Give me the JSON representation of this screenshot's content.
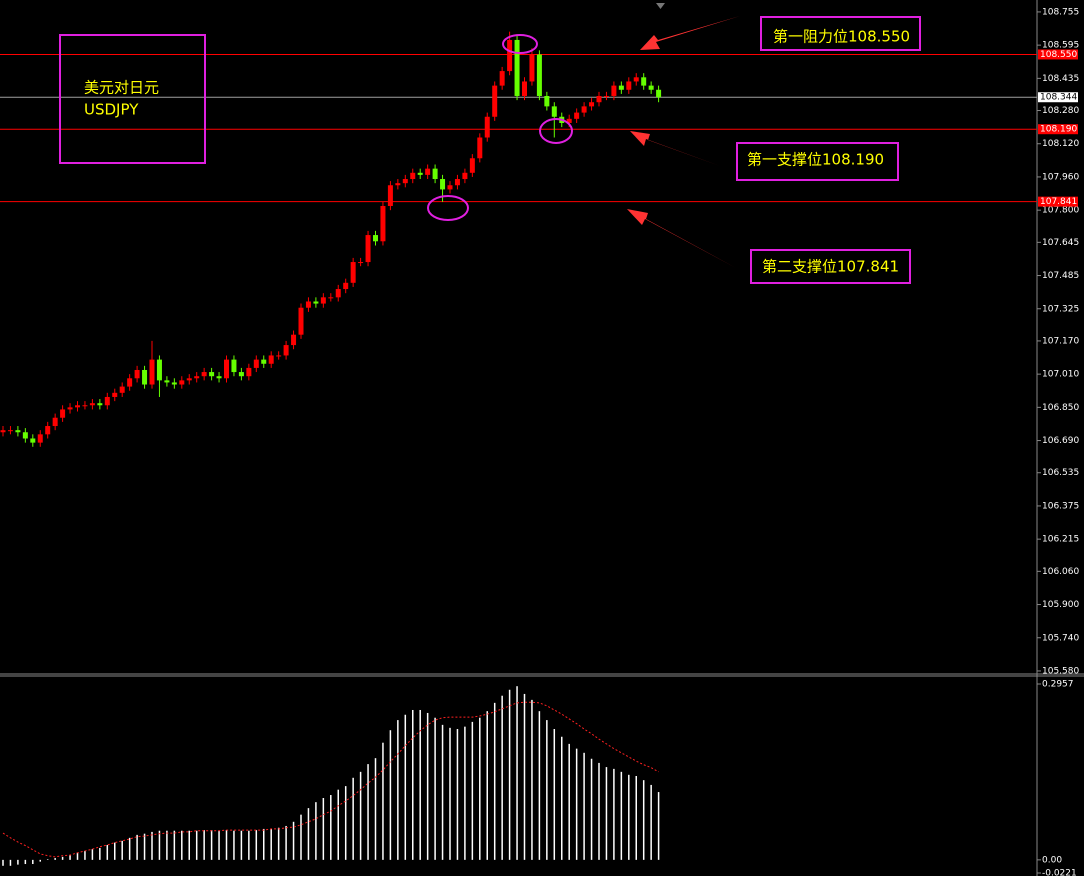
{
  "chart_data": [
    {
      "type": "candlestick",
      "up_color": "#ff0000",
      "down_color": "#66ff00",
      "ylim": [
        105.575,
        108.798
      ],
      "yticks": [
        108.755,
        108.595,
        108.435,
        {
          "value": 108.28,
          "label": "108.280"
        },
        {
          "value": 108.12,
          "label": "108.120"
        },
        {
          "value": 107.96,
          "label": "107.960"
        },
        {
          "value": 107.8,
          "label": "107.800"
        },
        107.645,
        107.485,
        107.325,
        {
          "value": 107.17,
          "label": "107.170"
        },
        {
          "value": 107.01,
          "label": "107.010"
        },
        {
          "value": 106.85,
          "label": "106.850"
        },
        {
          "value": 106.69,
          "label": "106.690"
        },
        106.535,
        106.375,
        106.215,
        {
          "value": 106.06,
          "label": "106.060"
        },
        {
          "value": 105.9,
          "label": "105.900"
        },
        {
          "value": 105.74,
          "label": "105.740"
        },
        {
          "value": 105.58,
          "label": "105.580"
        }
      ],
      "open": [
        106.73,
        106.74,
        106.74,
        106.73,
        106.7,
        106.68,
        106.72,
        106.76,
        106.8,
        106.84,
        106.85,
        106.86,
        106.86,
        106.87,
        106.86,
        106.9,
        106.92,
        106.95,
        106.99,
        107.03,
        106.96,
        107.08,
        106.98,
        106.97,
        106.96,
        106.98,
        106.99,
        107.0,
        107.02,
        107.0,
        106.99,
        107.08,
        107.02,
        107.0,
        107.04,
        107.08,
        107.06,
        107.1,
        107.1,
        107.15,
        107.2,
        107.33,
        107.36,
        107.35,
        107.38,
        107.38,
        107.42,
        107.45,
        107.55,
        107.55,
        107.68,
        107.65,
        107.82,
        107.92,
        107.93,
        107.95,
        107.98,
        107.97,
        108.0,
        107.95,
        107.9,
        107.92,
        107.95,
        107.98,
        108.05,
        108.15,
        108.25,
        108.4,
        108.47,
        108.62,
        108.35,
        108.42,
        108.55,
        108.35,
        108.3,
        108.25,
        108.22,
        108.24,
        108.27,
        108.3,
        108.32,
        108.35,
        108.35,
        108.4,
        108.38,
        108.42,
        108.44,
        108.4,
        108.38
      ],
      "high": [
        106.76,
        106.76,
        106.76,
        106.75,
        106.72,
        106.74,
        106.78,
        106.82,
        106.86,
        106.87,
        106.88,
        106.88,
        106.89,
        106.89,
        106.92,
        106.94,
        106.97,
        107.01,
        107.05,
        107.05,
        107.17,
        107.1,
        107.0,
        106.99,
        107.0,
        107.01,
        107.02,
        107.04,
        107.04,
        107.02,
        107.1,
        107.1,
        107.04,
        107.06,
        107.1,
        107.1,
        107.12,
        107.12,
        107.17,
        107.22,
        107.35,
        107.38,
        107.38,
        107.4,
        107.4,
        107.44,
        107.47,
        107.57,
        107.57,
        107.7,
        107.7,
        107.84,
        107.94,
        107.95,
        107.97,
        108.0,
        108.0,
        108.02,
        108.02,
        107.97,
        107.94,
        107.97,
        108.0,
        108.07,
        108.17,
        108.27,
        108.42,
        108.49,
        108.66,
        108.64,
        108.44,
        108.58,
        108.57,
        108.37,
        108.32,
        108.27,
        108.26,
        108.29,
        108.32,
        108.34,
        108.37,
        108.37,
        108.42,
        108.42,
        108.44,
        108.46,
        108.46,
        108.42,
        108.4
      ],
      "low": [
        106.71,
        106.72,
        106.71,
        106.68,
        106.66,
        106.66,
        106.7,
        106.74,
        106.78,
        106.82,
        106.83,
        106.84,
        106.84,
        106.84,
        106.84,
        106.88,
        106.9,
        106.93,
        106.97,
        106.94,
        106.94,
        106.9,
        106.95,
        106.94,
        106.94,
        106.96,
        106.97,
        106.98,
        106.98,
        106.97,
        106.97,
        107.0,
        106.98,
        106.98,
        107.02,
        107.04,
        107.04,
        107.08,
        107.08,
        107.13,
        107.18,
        107.31,
        107.33,
        107.33,
        107.36,
        107.36,
        107.4,
        107.43,
        107.53,
        107.53,
        107.63,
        107.63,
        107.8,
        107.9,
        107.91,
        107.93,
        107.95,
        107.95,
        107.93,
        107.84,
        107.88,
        107.9,
        107.93,
        107.96,
        108.03,
        108.13,
        108.23,
        108.38,
        108.45,
        108.33,
        108.33,
        108.4,
        108.33,
        108.28,
        108.15,
        108.2,
        108.2,
        108.22,
        108.25,
        108.28,
        108.3,
        108.33,
        108.33,
        108.36,
        108.36,
        108.4,
        108.38,
        108.36,
        108.32
      ],
      "close": [
        106.74,
        106.74,
        106.73,
        106.7,
        106.68,
        106.72,
        106.76,
        106.8,
        106.84,
        106.85,
        106.86,
        106.86,
        106.87,
        106.86,
        106.9,
        106.92,
        106.95,
        106.99,
        107.03,
        106.96,
        107.08,
        106.98,
        106.97,
        106.96,
        106.98,
        106.99,
        107.0,
        107.02,
        107.0,
        106.99,
        107.08,
        107.02,
        107.0,
        107.04,
        107.08,
        107.06,
        107.1,
        107.1,
        107.15,
        107.2,
        107.33,
        107.36,
        107.35,
        107.38,
        107.38,
        107.42,
        107.45,
        107.55,
        107.55,
        107.68,
        107.65,
        107.82,
        107.92,
        107.93,
        107.95,
        107.98,
        107.97,
        108.0,
        107.95,
        107.9,
        107.92,
        107.95,
        107.98,
        108.05,
        108.15,
        108.25,
        108.4,
        108.47,
        108.62,
        108.35,
        108.42,
        108.55,
        108.35,
        108.3,
        108.25,
        108.22,
        108.24,
        108.27,
        108.3,
        108.32,
        108.35,
        108.35,
        108.4,
        108.38,
        108.42,
        108.44,
        108.4,
        108.38,
        108.344
      ],
      "last_price": {
        "value": 108.344,
        "color": "#a0a0a0"
      },
      "levels": [
        {
          "value": 108.55,
          "value_label": "108.550",
          "text": "第一阻力位108.550",
          "color": "#ff0000"
        },
        {
          "value": 108.19,
          "value_label": "108.190",
          "text": "第一支撑位108.190",
          "color": "#ff0000"
        },
        {
          "value": 107.841,
          "text": "第二支撑位107.841",
          "color": "#ff0000"
        }
      ],
      "label_lines": [
        "美元对日元",
        "USDJPY"
      ]
    },
    {
      "type": "macd",
      "color": "#ffffff",
      "ylim": [
        -0.0221,
        0.2957
      ],
      "yticks": [
        0.2957,
        {
          "value": 0,
          "label": "0.00"
        },
        -0.0221
      ],
      "values": [
        -0.01,
        -0.01,
        -0.008,
        -0.007,
        -0.007,
        -0.003,
        0.001,
        0.003,
        0.005,
        0.008,
        0.012,
        0.015,
        0.018,
        0.02,
        0.025,
        0.029,
        0.032,
        0.037,
        0.042,
        0.044,
        0.047,
        0.049,
        0.049,
        0.049,
        0.049,
        0.049,
        0.049,
        0.05,
        0.05,
        0.049,
        0.05,
        0.049,
        0.049,
        0.049,
        0.05,
        0.052,
        0.052,
        0.054,
        0.057,
        0.064,
        0.076,
        0.087,
        0.097,
        0.104,
        0.109,
        0.118,
        0.124,
        0.138,
        0.148,
        0.161,
        0.171,
        0.197,
        0.218,
        0.235,
        0.244,
        0.252,
        0.252,
        0.247,
        0.239,
        0.227,
        0.222,
        0.22,
        0.224,
        0.232,
        0.239,
        0.25,
        0.264,
        0.276,
        0.286,
        0.292,
        0.279,
        0.269,
        0.25,
        0.235,
        0.22,
        0.207,
        0.195,
        0.187,
        0.18,
        0.17,
        0.163,
        0.156,
        0.153,
        0.148,
        0.143,
        0.141,
        0.134,
        0.126,
        0.114
      ],
      "signal": {
        "color": "#ff2020",
        "values": [
          0.045,
          0.037,
          0.03,
          0.024,
          0.017,
          0.01,
          0.007,
          0.005,
          0.007,
          0.008,
          0.012,
          0.015,
          0.018,
          0.022,
          0.025,
          0.029,
          0.032,
          0.035,
          0.039,
          0.04,
          0.042,
          0.044,
          0.045,
          0.045,
          0.047,
          0.047,
          0.049,
          0.049,
          0.049,
          0.049,
          0.05,
          0.05,
          0.05,
          0.05,
          0.05,
          0.05,
          0.052,
          0.052,
          0.054,
          0.055,
          0.059,
          0.064,
          0.069,
          0.076,
          0.082,
          0.091,
          0.099,
          0.108,
          0.118,
          0.129,
          0.139,
          0.151,
          0.165,
          0.178,
          0.192,
          0.205,
          0.217,
          0.227,
          0.235,
          0.239,
          0.24,
          0.24,
          0.24,
          0.24,
          0.242,
          0.245,
          0.249,
          0.254,
          0.259,
          0.264,
          0.265,
          0.265,
          0.264,
          0.259,
          0.252,
          0.245,
          0.237,
          0.229,
          0.22,
          0.212,
          0.203,
          0.195,
          0.187,
          0.18,
          0.173,
          0.166,
          0.16,
          0.155,
          0.148
        ]
      }
    }
  ]
}
